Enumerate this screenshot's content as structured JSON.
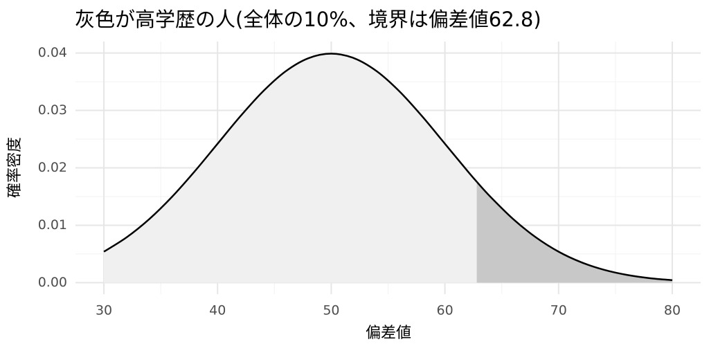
{
  "chart_data": {
    "type": "area",
    "title": "灰色が高学歴の人(全体の10%、境界は偏差値62.8)",
    "x_label": "偏差値",
    "y_label": "確率密度",
    "x": [
      30,
      32,
      34,
      36,
      38,
      40,
      42,
      44,
      46,
      48,
      50,
      52,
      54,
      56,
      58,
      60,
      62,
      62.8,
      64,
      66,
      68,
      70,
      72,
      74,
      76,
      78,
      80
    ],
    "y": [
      0.0054,
      0.0079,
      0.01109,
      0.01497,
      0.01942,
      0.0242,
      0.02897,
      0.03332,
      0.03683,
      0.0391,
      0.03989,
      0.0391,
      0.03683,
      0.03332,
      0.02897,
      0.0242,
      0.01942,
      0.01758,
      0.01497,
      0.01109,
      0.0079,
      0.0054,
      0.00355,
      0.00224,
      0.00136,
      0.00079,
      0.00044
    ],
    "threshold": 62.8,
    "line_color": "#000000",
    "fill_colors": [
      "#f0f0f0",
      "#c8c8c8"
    ],
    "xlim": [
      27.5,
      82.5
    ],
    "ylim": [
      -0.002,
      0.042
    ],
    "xticks": [
      30,
      40,
      50,
      60,
      70,
      80
    ],
    "yticks": [
      {
        "value": 0,
        "label": "0.00"
      },
      0.01,
      0.02,
      0.03,
      0.04
    ],
    "minor_xticks": [
      35,
      45,
      55,
      65,
      75
    ],
    "minor_yticks": [
      0.005,
      0.015,
      0.025,
      0.035
    ],
    "grid": true
  }
}
